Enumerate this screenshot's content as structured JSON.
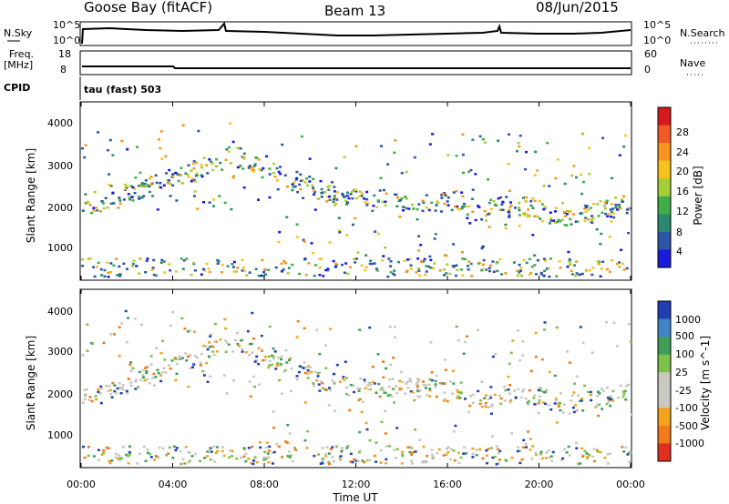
{
  "header": {
    "station": "Goose Bay (fitACF)",
    "beam": "Beam 13",
    "date": "08/Jun/2015"
  },
  "status_panels": {
    "nsky_label": "N.Sky",
    "nsky_ticks": [
      "10^5",
      "10^0"
    ],
    "nsearch_label": "N.Search",
    "nsearch_ticks": [
      "10^5",
      "10^0"
    ],
    "freq_label": "Freq.",
    "freq_unit": "[MHz]",
    "freq_ticks": [
      "18",
      "8"
    ],
    "nave_label": "Nave",
    "nave_ticks": [
      "60",
      "0"
    ],
    "cpid_label": "CPID",
    "cpid_text": "tau (fast) 503"
  },
  "chart_data": [
    {
      "type": "heatmap",
      "panel": "power",
      "ylabel": "Slant Range [km]",
      "yticks": [
        "4000",
        "3000",
        "2000",
        "1000"
      ],
      "ylim": [
        180,
        4500
      ],
      "xlim_hours": [
        0,
        24
      ],
      "colorbar_label": "Power [dB]",
      "colorbar_ticks": [
        "28",
        "24",
        "20",
        "16",
        "12",
        "8",
        "4"
      ],
      "colorbar_colors": [
        "#d7191c",
        "#f15a24",
        "#f7941d",
        "#f6c21c",
        "#a6ce39",
        "#3fae49",
        "#2b8a6e",
        "#2b55a6",
        "#1a1adb"
      ]
    },
    {
      "type": "heatmap",
      "panel": "velocity",
      "ylabel": "Slant Range [km]",
      "yticks": [
        "4000",
        "3000",
        "2000",
        "1000"
      ],
      "ylim": [
        180,
        4500
      ],
      "xlabel": "Time UT",
      "xticks": [
        "00:00",
        "04:00",
        "08:00",
        "12:00",
        "16:00",
        "20:00",
        "00:00"
      ],
      "xlim_hours": [
        0,
        24
      ],
      "colorbar_label": "Velocity [m s^-1]",
      "colorbar_ticks": [
        "1000",
        "500",
        "100",
        "25",
        "-25",
        "-100",
        "-500",
        "-1000"
      ],
      "colorbar_colors": [
        "#2040b0",
        "#3f86c8",
        "#3f9e55",
        "#7cc24a",
        "#c8c8c0",
        "#c8c8c0",
        "#f4a21c",
        "#f07a1c",
        "#e03020"
      ]
    }
  ]
}
